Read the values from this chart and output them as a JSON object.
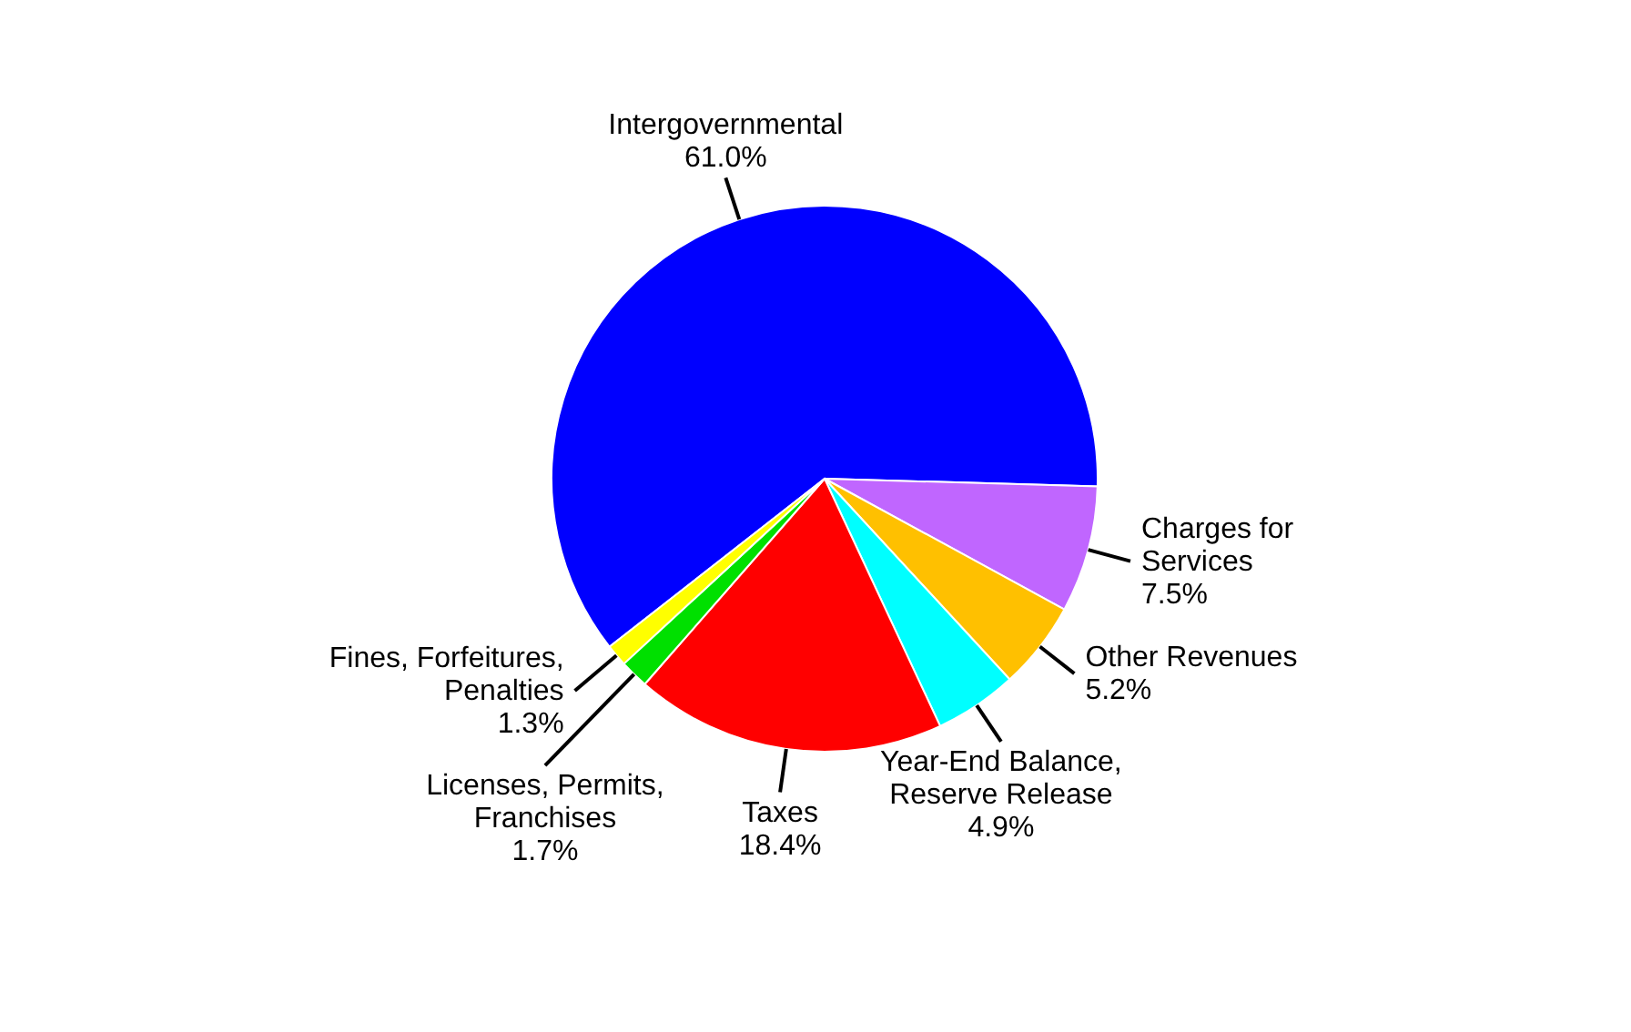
{
  "chart_data": {
    "type": "pie",
    "categories": [
      "Intergovernmental",
      "Charges for Services",
      "Other Revenues",
      "Year-End Balance, Reserve Release",
      "Taxes",
      "Licenses, Permits, Franchises",
      "Fines, Forfeitures, Penalties"
    ],
    "values": [
      61.0,
      7.5,
      5.2,
      4.9,
      18.4,
      1.7,
      1.3
    ],
    "colors": [
      "#0000ff",
      "#c066ff",
      "#ffc000",
      "#00ffff",
      "#ff0000",
      "#00e000",
      "#ffff00"
    ],
    "value_labels": [
      "61.0%",
      "7.5%",
      "5.2%",
      "4.9%",
      "18.4%",
      "1.7%",
      "1.3%"
    ]
  }
}
